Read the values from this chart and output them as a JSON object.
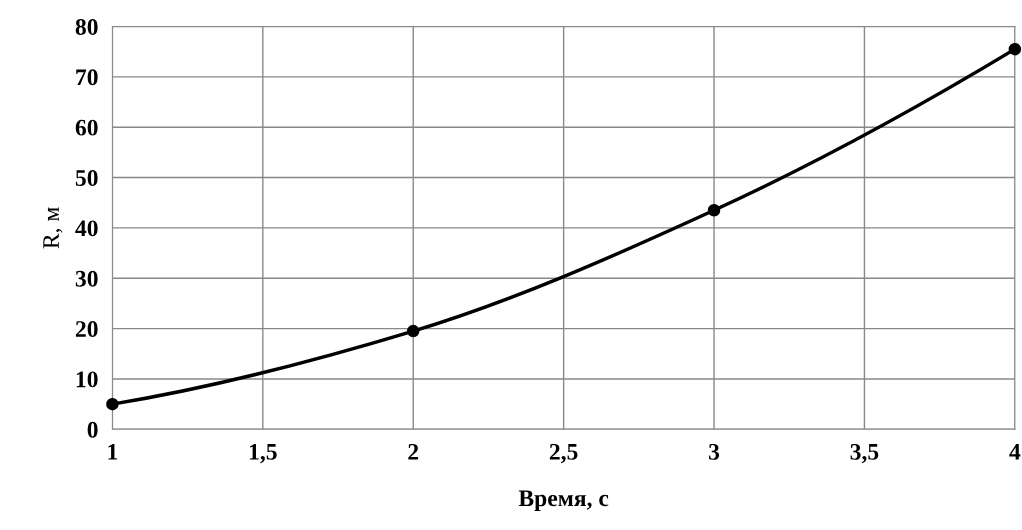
{
  "chart_data": {
    "type": "line",
    "xlabel": "Время, с",
    "ylabel": "R, м",
    "x": [
      1,
      2,
      3,
      4
    ],
    "series": [
      {
        "color": "#000000",
        "values": [
          5,
          19.5,
          43.5,
          75.5
        ]
      }
    ],
    "xlim": [
      1,
      4
    ],
    "xticks": [
      1,
      {
        "value": 1.5,
        "label": "1,5"
      },
      2,
      {
        "value": 2.5,
        "label": "2,5"
      },
      3,
      {
        "value": 3.5,
        "label": "3,5"
      },
      4
    ],
    "ylim": [
      0,
      80
    ],
    "yticks": [
      0,
      10,
      20,
      30,
      40,
      50,
      60,
      70,
      80
    ],
    "grid": true,
    "marker": "circle",
    "line_style": "solid",
    "legend": false
  }
}
